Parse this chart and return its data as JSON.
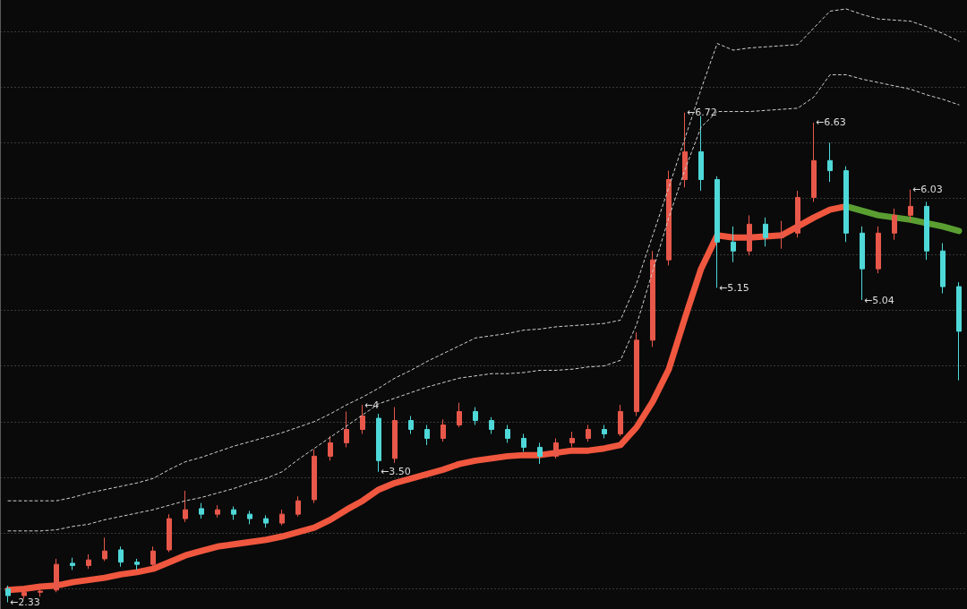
{
  "chart_data": {
    "type": "candlestick",
    "categories": [
      null,
      null,
      null,
      null,
      null,
      null,
      null,
      null,
      null,
      null,
      null,
      null,
      null,
      null,
      null,
      null,
      null,
      null,
      null,
      null,
      null,
      null,
      null,
      null,
      null,
      null,
      null,
      null,
      null,
      null,
      null,
      null,
      null,
      null,
      null,
      null,
      null,
      null,
      null,
      null,
      null,
      null,
      null,
      null,
      null,
      null,
      null,
      null,
      null,
      null,
      null,
      null,
      null,
      null,
      null,
      null,
      null,
      null,
      null,
      null
    ],
    "ohlc": [
      [
        2.45,
        2.48,
        2.33,
        2.39
      ],
      [
        2.39,
        2.46,
        2.36,
        2.42
      ],
      [
        2.42,
        2.47,
        2.38,
        2.43
      ],
      [
        2.44,
        2.72,
        2.42,
        2.67
      ],
      [
        2.68,
        2.73,
        2.62,
        2.66
      ],
      [
        2.66,
        2.76,
        2.63,
        2.71
      ],
      [
        2.72,
        2.91,
        2.7,
        2.79
      ],
      [
        2.8,
        2.83,
        2.65,
        2.69
      ],
      [
        2.69,
        2.72,
        2.62,
        2.67
      ],
      [
        2.67,
        2.83,
        2.65,
        2.79
      ],
      [
        2.8,
        3.12,
        2.78,
        3.08
      ],
      [
        3.08,
        3.33,
        3.05,
        3.16
      ],
      [
        3.17,
        3.22,
        3.08,
        3.12
      ],
      [
        3.12,
        3.2,
        3.09,
        3.16
      ],
      [
        3.16,
        3.19,
        3.07,
        3.12
      ],
      [
        3.12,
        3.15,
        3.03,
        3.08
      ],
      [
        3.08,
        3.11,
        3.0,
        3.04
      ],
      [
        3.04,
        3.16,
        3.02,
        3.12
      ],
      [
        3.12,
        3.28,
        3.1,
        3.24
      ],
      [
        3.25,
        3.7,
        3.22,
        3.64
      ],
      [
        3.64,
        3.82,
        3.6,
        3.76
      ],
      [
        3.76,
        4.04,
        3.72,
        3.88
      ],
      [
        3.88,
        4.1,
        3.84,
        4.0
      ],
      [
        3.98,
        4.02,
        3.5,
        3.6
      ],
      [
        3.62,
        4.08,
        3.58,
        3.96
      ],
      [
        3.96,
        4.0,
        3.84,
        3.88
      ],
      [
        3.88,
        3.92,
        3.74,
        3.8
      ],
      [
        3.8,
        3.97,
        3.77,
        3.92
      ],
      [
        3.92,
        4.12,
        3.9,
        4.04
      ],
      [
        4.04,
        4.08,
        3.92,
        3.96
      ],
      [
        3.96,
        3.99,
        3.84,
        3.88
      ],
      [
        3.88,
        3.92,
        3.76,
        3.8
      ],
      [
        3.8,
        3.84,
        3.68,
        3.72
      ],
      [
        3.72,
        3.76,
        3.57,
        3.64
      ],
      [
        3.64,
        3.8,
        3.62,
        3.76
      ],
      [
        3.76,
        3.86,
        3.72,
        3.8
      ],
      [
        3.8,
        3.92,
        3.77,
        3.88
      ],
      [
        3.88,
        3.92,
        3.8,
        3.84
      ],
      [
        3.84,
        4.1,
        3.82,
        4.04
      ],
      [
        4.04,
        4.75,
        4.0,
        4.68
      ],
      [
        4.68,
        5.48,
        4.62,
        5.4
      ],
      [
        5.4,
        6.2,
        5.35,
        6.12
      ],
      [
        6.12,
        6.72,
        6.05,
        6.37
      ],
      [
        6.37,
        6.69,
        6.02,
        6.12
      ],
      [
        6.12,
        6.15,
        5.15,
        5.56
      ],
      [
        5.56,
        5.7,
        5.38,
        5.48
      ],
      [
        5.48,
        5.8,
        5.44,
        5.72
      ],
      [
        5.72,
        5.78,
        5.52,
        5.6
      ],
      [
        5.6,
        5.75,
        5.5,
        5.64
      ],
      [
        5.64,
        6.02,
        5.6,
        5.96
      ],
      [
        5.96,
        6.63,
        5.92,
        6.29
      ],
      [
        6.29,
        6.45,
        6.1,
        6.2
      ],
      [
        6.2,
        6.24,
        5.56,
        5.64
      ],
      [
        5.64,
        5.7,
        5.04,
        5.32
      ],
      [
        5.32,
        5.7,
        5.28,
        5.64
      ],
      [
        5.64,
        5.86,
        5.58,
        5.8
      ],
      [
        5.8,
        6.03,
        5.75,
        5.88
      ],
      [
        5.88,
        5.92,
        5.4,
        5.48
      ],
      [
        5.48,
        5.55,
        5.1,
        5.16
      ],
      [
        5.16,
        5.2,
        4.32,
        4.76
      ]
    ],
    "colors": [
      "#4fd8d8",
      "#e8584a",
      "#e8584a",
      "#e8584a",
      "#4fd8d8",
      "#e8584a",
      "#e8584a",
      "#4fd8d8",
      "#4fd8d8",
      "#e8584a",
      "#e8584a",
      "#e8584a",
      "#4fd8d8",
      "#e8584a",
      "#4fd8d8",
      "#4fd8d8",
      "#4fd8d8",
      "#e8584a",
      "#e8584a",
      "#e8584a",
      "#e8584a",
      "#e8584a",
      "#e8584a",
      "#4fd8d8",
      "#e8584a",
      "#4fd8d8",
      "#4fd8d8",
      "#e8584a",
      "#e8584a",
      "#4fd8d8",
      "#4fd8d8",
      "#4fd8d8",
      "#4fd8d8",
      "#4fd8d8",
      "#e8584a",
      "#e8584a",
      "#e8584a",
      "#4fd8d8",
      "#e8584a",
      "#e8584a",
      "#e8584a",
      "#e8584a",
      "#e8584a",
      "#4fd8d8",
      "#4fd8d8",
      "#4fd8d8",
      "#e8584a",
      "#4fd8d8",
      "#e8584a",
      "#e8584a",
      "#e8584a",
      "#4fd8d8",
      "#4fd8d8",
      "#4fd8d8",
      "#e8584a",
      "#e8584a",
      "#e8584a",
      "#4fd8d8",
      "#4fd8d8",
      "#4fd8d8"
    ],
    "series": [
      {
        "type": "line",
        "color": "#cfcfcf",
        "line_style": "dashed",
        "values": [
          3.24,
          3.24,
          3.24,
          3.24,
          3.27,
          3.31,
          3.34,
          3.37,
          3.4,
          3.44,
          3.52,
          3.59,
          3.63,
          3.68,
          3.73,
          3.77,
          3.81,
          3.85,
          3.9,
          3.95,
          4.02,
          4.1,
          4.17,
          4.25,
          4.34,
          4.41,
          4.49,
          4.56,
          4.63,
          4.7,
          4.72,
          4.74,
          4.77,
          4.78,
          4.8,
          4.81,
          4.82,
          4.83,
          4.86,
          5.19,
          5.62,
          6.05,
          6.49,
          6.93,
          7.34,
          7.28,
          7.3,
          7.31,
          7.32,
          7.33,
          7.48,
          7.63,
          7.65,
          7.6,
          7.56,
          7.55,
          7.54,
          7.49,
          7.43,
          7.36
        ]
      },
      {
        "type": "line",
        "color": "#cfcfcf",
        "line_style": "dashed",
        "values": [
          2.97,
          2.97,
          2.97,
          2.98,
          3.01,
          3.03,
          3.07,
          3.1,
          3.13,
          3.16,
          3.2,
          3.24,
          3.27,
          3.31,
          3.35,
          3.4,
          3.44,
          3.5,
          3.61,
          3.71,
          3.81,
          3.91,
          4.01,
          4.11,
          4.16,
          4.21,
          4.26,
          4.3,
          4.34,
          4.36,
          4.38,
          4.38,
          4.39,
          4.41,
          4.41,
          4.42,
          4.44,
          4.45,
          4.5,
          4.82,
          5.3,
          5.78,
          6.21,
          6.59,
          6.73,
          6.73,
          6.73,
          6.74,
          6.75,
          6.76,
          6.86,
          7.06,
          7.06,
          7.02,
          6.99,
          6.96,
          6.93,
          6.88,
          6.84,
          6.79
        ]
      },
      {
        "type": "line",
        "color": "#f0573f",
        "line_style": "solid",
        "values": [
          2.44,
          2.45,
          2.47,
          2.48,
          2.51,
          2.53,
          2.55,
          2.58,
          2.6,
          2.63,
          2.69,
          2.75,
          2.79,
          2.83,
          2.85,
          2.87,
          2.89,
          2.92,
          2.96,
          3.0,
          3.07,
          3.16,
          3.24,
          3.34,
          3.4,
          3.44,
          3.48,
          3.52,
          3.57,
          3.6,
          3.62,
          3.64,
          3.65,
          3.65,
          3.67,
          3.69,
          3.69,
          3.71,
          3.74,
          3.9,
          4.13,
          4.42,
          4.88,
          5.32,
          5.62,
          5.6,
          5.6,
          5.61,
          5.62,
          5.7,
          5.78,
          5.85,
          5.88,
          null,
          null,
          null,
          null,
          null,
          null,
          null
        ]
      },
      {
        "type": "line",
        "color": "#5a9e32",
        "line_style": "solid",
        "values": [
          null,
          null,
          null,
          null,
          null,
          null,
          null,
          null,
          null,
          null,
          null,
          null,
          null,
          null,
          null,
          null,
          null,
          null,
          null,
          null,
          null,
          null,
          null,
          null,
          null,
          null,
          null,
          null,
          null,
          null,
          null,
          null,
          null,
          null,
          null,
          null,
          null,
          null,
          null,
          null,
          null,
          null,
          null,
          null,
          null,
          null,
          null,
          null,
          null,
          null,
          null,
          null,
          5.88,
          5.84,
          5.8,
          5.78,
          5.76,
          5.73,
          5.7,
          5.66
        ]
      }
    ],
    "ylim": [
      2.27,
      7.73
    ],
    "yticks": [
      {
        "value": 2.45,
        "label": null
      },
      {
        "value": 2.95,
        "label": null
      },
      {
        "value": 3.45,
        "label": null
      },
      {
        "value": 3.95,
        "label": null
      },
      {
        "value": 4.45,
        "label": null
      },
      {
        "value": 4.95,
        "label": null
      },
      {
        "value": 5.45,
        "label": null
      },
      {
        "value": 5.95,
        "label": null
      },
      {
        "value": 6.45,
        "label": null
      },
      {
        "value": 6.95,
        "label": null
      },
      {
        "value": 7.45,
        "label": null
      }
    ],
    "grid": "y",
    "tick_labels": false,
    "annotations": [
      {
        "text": "←2.33",
        "y": 2.33
      },
      {
        "text": "←4",
        "y": 4.1
      },
      "←3.50",
      {
        "text": "←6.72",
        "y": 6.72
      },
      "←5.15",
      "←6.63",
      "←5.04",
      "←6.03"
    ]
  }
}
